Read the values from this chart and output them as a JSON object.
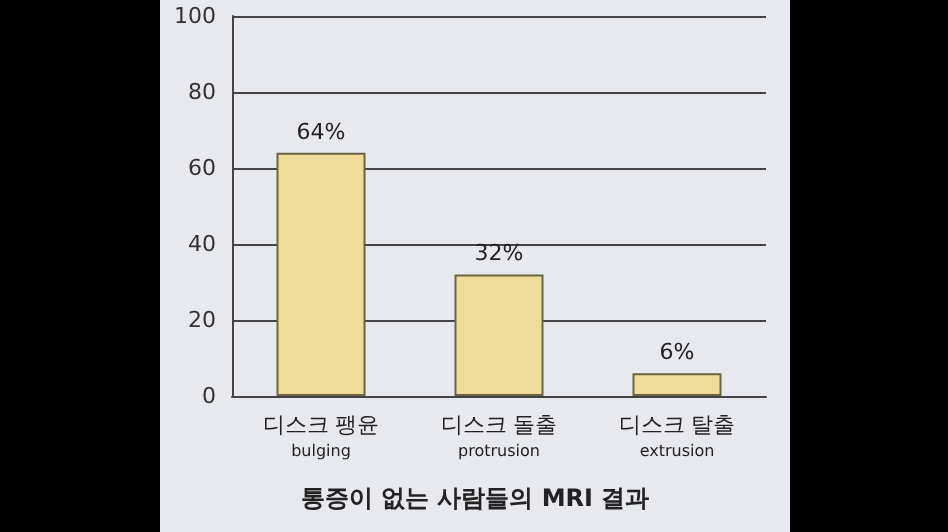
{
  "chart_data": {
    "type": "bar",
    "title": "통증이 없는 사람들의 MRI 결과",
    "categories": [
      "디스크 팽윤\nbulging",
      "디스크 돌출\nprotrusion",
      "디스크 탈출\nextrusion"
    ],
    "values": [
      64,
      32,
      6
    ],
    "color": "#eedc98",
    "value_labels": [
      "64%",
      "32%",
      "6%"
    ],
    "ylim": [
      0,
      100
    ],
    "yticks": [
      0,
      20,
      40,
      60,
      80,
      100
    ],
    "grid": "y"
  }
}
